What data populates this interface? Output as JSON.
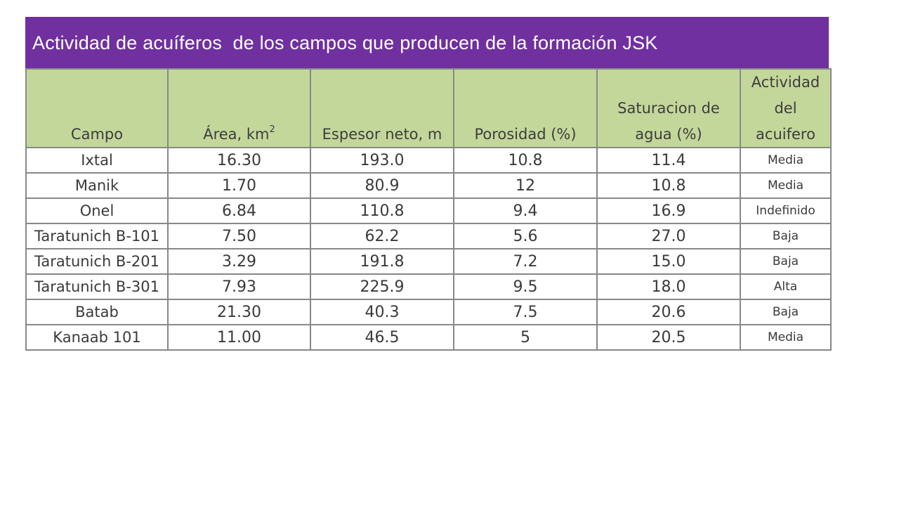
{
  "title": "Actividad de acuíferos  de los campos que producen de la formación JSK",
  "colors": {
    "title_bg": "#7030a0",
    "header_bg": "#c4d79b",
    "border": "#888888"
  },
  "table": {
    "headers": {
      "campo": "Campo",
      "area": "Área, km",
      "area_sup": "2",
      "espesor": "Espesor neto, m",
      "porosidad": "Porosidad (%)",
      "saturacion_1": "Saturacion de",
      "saturacion_2": "agua (%)",
      "actividad_1": "Actividad",
      "actividad_2": "del",
      "actividad_3": "acuifero"
    },
    "rows": [
      {
        "campo": "Ixtal",
        "area": "16.30",
        "espesor": "193.0",
        "porosidad": "10.8",
        "saturacion": "11.4",
        "actividad": "Media"
      },
      {
        "campo": "Manik",
        "area": "1.70",
        "espesor": "80.9",
        "porosidad": "12",
        "saturacion": "10.8",
        "actividad": "Media"
      },
      {
        "campo": "Onel",
        "area": "6.84",
        "espesor": "110.8",
        "porosidad": "9.4",
        "saturacion": "16.9",
        "actividad": "Indefinido"
      },
      {
        "campo": "Taratunich B-101",
        "area": "7.50",
        "espesor": "62.2",
        "porosidad": "5.6",
        "saturacion": "27.0",
        "actividad": "Baja"
      },
      {
        "campo": "Taratunich B-201",
        "area": "3.29",
        "espesor": "191.8",
        "porosidad": "7.2",
        "saturacion": "15.0",
        "actividad": "Baja"
      },
      {
        "campo": "Taratunich B-301",
        "area": "7.93",
        "espesor": "225.9",
        "porosidad": "9.5",
        "saturacion": "18.0",
        "actividad": "Alta"
      },
      {
        "campo": "Batab",
        "area": "21.30",
        "espesor": "40.3",
        "porosidad": "7.5",
        "saturacion": "20.6",
        "actividad": "Baja"
      },
      {
        "campo": "Kanaab 101",
        "area": "11.00",
        "espesor": "46.5",
        "porosidad": "5",
        "saturacion": "20.5",
        "actividad": "Media"
      }
    ]
  }
}
